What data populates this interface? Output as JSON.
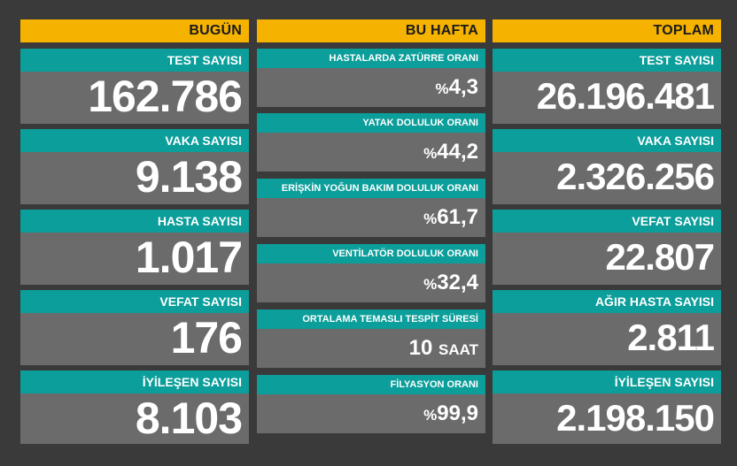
{
  "today": {
    "header": "BUGÜN",
    "cards": [
      {
        "label": "TEST SAYISI",
        "value": "162.786"
      },
      {
        "label": "VAKA SAYISI",
        "value": "9.138"
      },
      {
        "label": "HASTA SAYISI",
        "value": "1.017"
      },
      {
        "label": "VEFAT SAYISI",
        "value": "176"
      },
      {
        "label": "İYİLEŞEN SAYISI",
        "value": "8.103"
      }
    ]
  },
  "week": {
    "header": "BU HAFTA",
    "cards": [
      {
        "label": "HASTALARDA ZATÜRRE ORANI",
        "prefix": "%",
        "value": "4,3"
      },
      {
        "label": "YATAK DOLULUK ORANI",
        "prefix": "%",
        "value": "44,2"
      },
      {
        "label": "ERİŞKİN YOĞUN BAKIM DOLULUK ORANI",
        "prefix": "%",
        "value": "61,7"
      },
      {
        "label": "VENTİLATÖR DOLULUK ORANI",
        "prefix": "%",
        "value": "32,4"
      },
      {
        "label": "ORTALAMA TEMASLI TESPİT SÜRESİ",
        "value": "10",
        "suffix": "SAAT"
      },
      {
        "label": "FİLYASYON ORANI",
        "prefix": "%",
        "value": "99,9"
      }
    ]
  },
  "total": {
    "header": "TOPLAM",
    "cards": [
      {
        "label": "TEST SAYISI",
        "value": "26.196.481"
      },
      {
        "label": "VAKA SAYISI",
        "value": "2.326.256"
      },
      {
        "label": "VEFAT SAYISI",
        "value": "22.807"
      },
      {
        "label": "AĞIR HASTA SAYISI",
        "value": "2.811"
      },
      {
        "label": "İYİLEŞEN SAYISI",
        "value": "2.198.150"
      }
    ]
  },
  "colors": {
    "background": "#3a3a3a",
    "header": "#f5b300",
    "label_bar": "#0b9e9a",
    "card_body": "#6b6b6b",
    "text": "#ffffff"
  }
}
